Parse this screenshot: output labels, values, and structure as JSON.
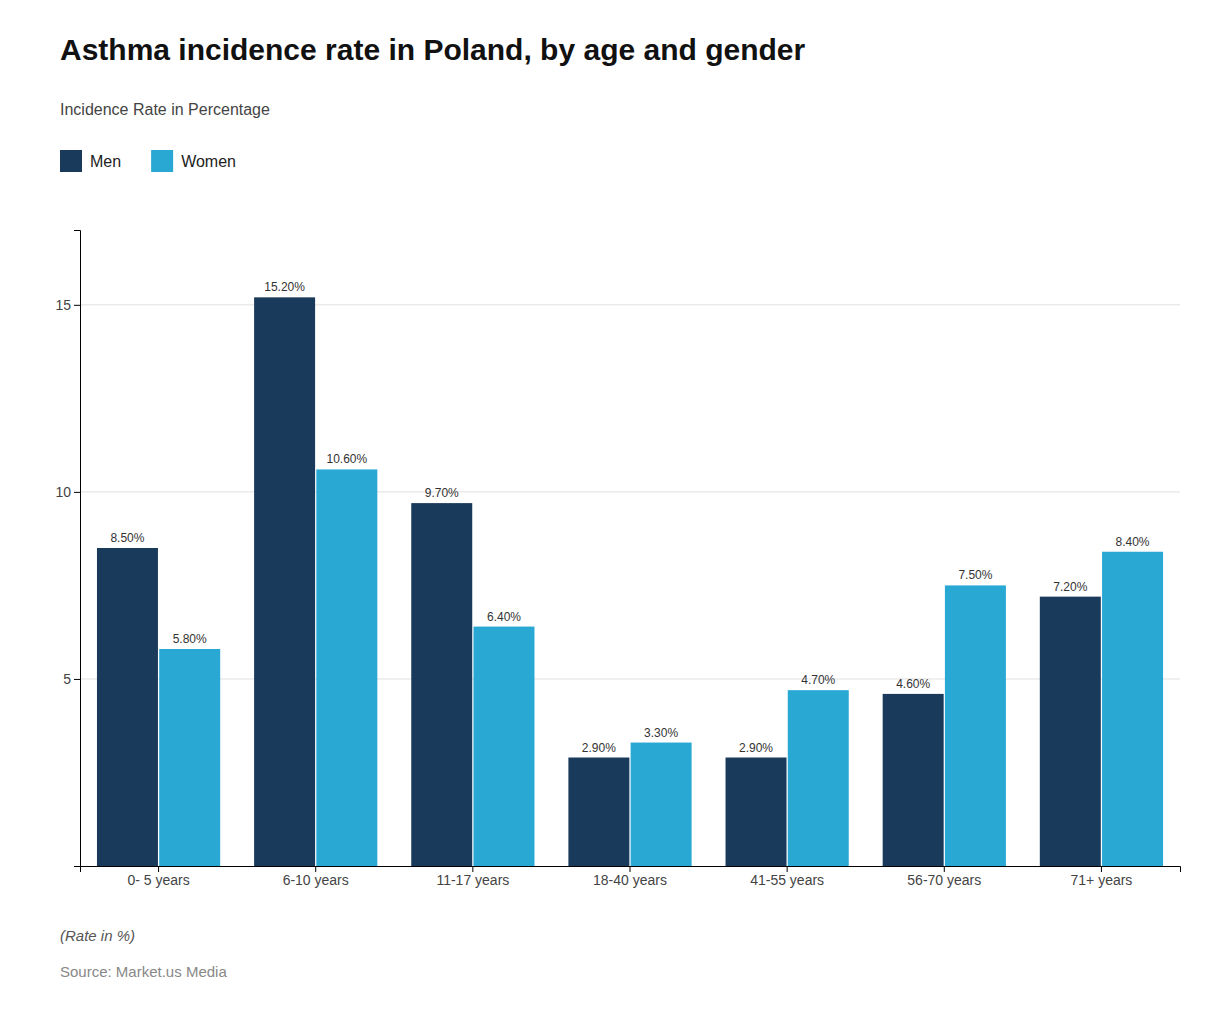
{
  "chart_data": {
    "type": "bar",
    "title": "Asthma incidence rate in Poland, by age and gender",
    "subtitle": "Incidence Rate in Percentage",
    "categories": [
      "0- 5 years",
      "6-10 years",
      "11-17 years",
      "18-40 years",
      "41-55 years",
      "56-70 years",
      "71+ years"
    ],
    "series": [
      {
        "name": "Men",
        "color": "#1a3a5c",
        "values": [
          8.5,
          15.2,
          9.7,
          2.9,
          2.9,
          4.6,
          7.2
        ],
        "value_labels": [
          "8.50%",
          "15.20%",
          "9.70%",
          "2.90%",
          "2.90%",
          "4.60%",
          "7.20%"
        ]
      },
      {
        "name": "Women",
        "color": "#29a8d4",
        "values": [
          5.8,
          10.6,
          6.4,
          3.3,
          4.7,
          7.5,
          8.4
        ],
        "value_labels": [
          "5.80%",
          "10.60%",
          "6.40%",
          "3.30%",
          "4.70%",
          "7.50%",
          "8.40%"
        ]
      }
    ],
    "ylim": [
      0,
      17
    ],
    "yticks": [
      5,
      10,
      15
    ],
    "grid": true,
    "legend": "top",
    "data_labels": true,
    "annotations": [
      "(Rate in %)",
      "Source: Market.us Media"
    ]
  }
}
